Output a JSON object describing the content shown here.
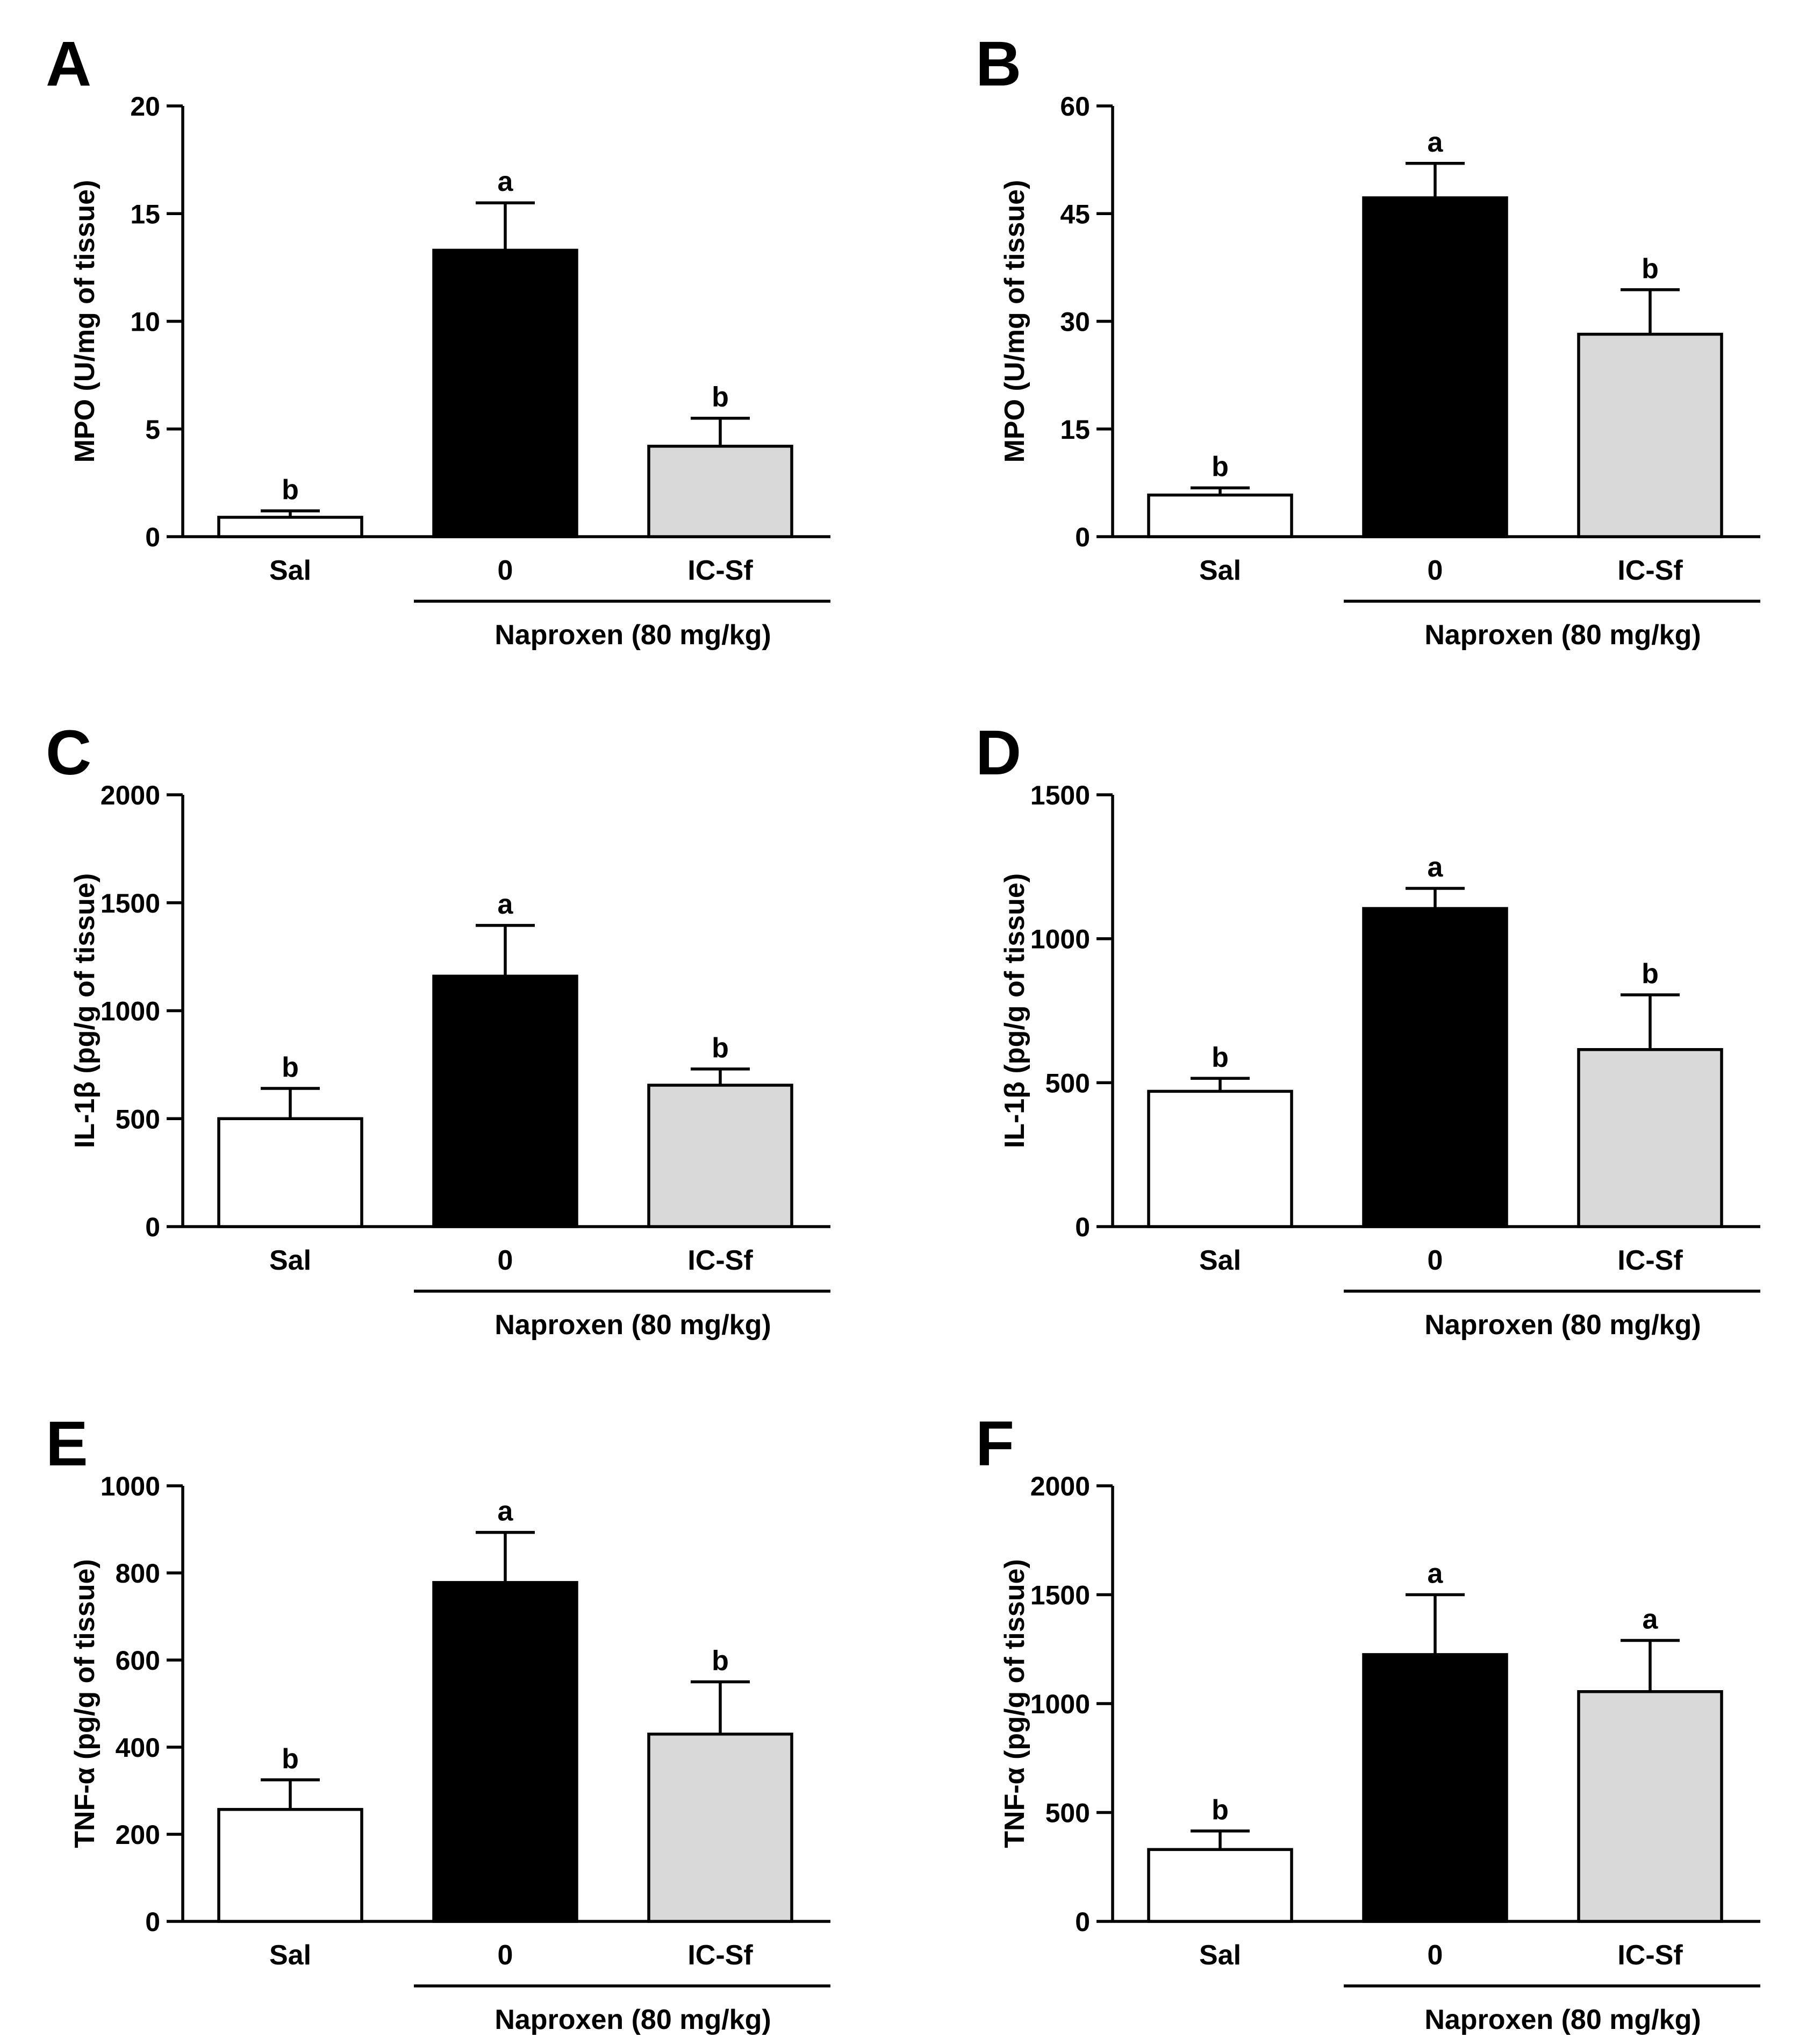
{
  "figure": {
    "panels": [
      "A",
      "B",
      "C",
      "D",
      "E",
      "F"
    ]
  },
  "colors": {
    "axis": "#000000",
    "sal_fill": "#ffffff",
    "zero_fill": "#000000",
    "icsf_fill": "#d9d9d9",
    "bar_stroke": "#000000"
  },
  "chart_data": [
    {
      "panel": "A",
      "type": "bar",
      "ylabel": "MPO (U/mg of tissue)",
      "ylim": [
        0,
        20
      ],
      "yticks": [
        "0",
        "5",
        "10",
        "15",
        "20"
      ],
      "categories": [
        "Sal",
        "0",
        "IC-Sf"
      ],
      "values": [
        0.9,
        13.3,
        4.2
      ],
      "errors": [
        0.3,
        2.2,
        1.3
      ],
      "sig_labels": [
        "b",
        "a",
        "b"
      ],
      "group_label": "Naproxen (80 mg/kg)"
    },
    {
      "panel": "B",
      "type": "bar",
      "ylabel": "MPO (U/mg of tissue)",
      "ylim": [
        0,
        60
      ],
      "yticks": [
        "0",
        "15",
        "30",
        "45",
        "60"
      ],
      "categories": [
        "Sal",
        "0",
        "IC-Sf"
      ],
      "values": [
        5.8,
        47.2,
        28.2
      ],
      "errors": [
        1.0,
        4.8,
        6.2
      ],
      "sig_labels": [
        "b",
        "a",
        "b"
      ],
      "group_label": "Naproxen (80 mg/kg)"
    },
    {
      "panel": "C",
      "type": "bar",
      "ylabel": "IL-1β (pg/g of tissue)",
      "ylim": [
        0,
        2000
      ],
      "yticks": [
        "0",
        "500",
        "1000",
        "1500",
        "2000"
      ],
      "categories": [
        "Sal",
        "0",
        "IC-Sf"
      ],
      "values": [
        500,
        1160,
        655
      ],
      "errors": [
        140,
        235,
        75
      ],
      "sig_labels": [
        "b",
        "a",
        "b"
      ],
      "group_label": "Naproxen (80 mg/kg)"
    },
    {
      "panel": "D",
      "type": "bar",
      "ylabel": "IL-1β (pg/g of tissue)",
      "ylim": [
        0,
        1500
      ],
      "yticks": [
        "0",
        "500",
        "1000",
        "1500"
      ],
      "categories": [
        "Sal",
        "0",
        "IC-Sf"
      ],
      "values": [
        470,
        1105,
        615
      ],
      "errors": [
        45,
        70,
        190
      ],
      "sig_labels": [
        "b",
        "a",
        "b"
      ],
      "group_label": "Naproxen (80 mg/kg)"
    },
    {
      "panel": "E",
      "type": "bar",
      "ylabel": "TNF-α (pg/g of tissue)",
      "ylim": [
        0,
        1000
      ],
      "yticks": [
        "0",
        "200",
        "400",
        "600",
        "800",
        "1000"
      ],
      "categories": [
        "Sal",
        "0",
        "IC-Sf"
      ],
      "values": [
        257,
        778,
        430
      ],
      "errors": [
        68,
        115,
        120
      ],
      "sig_labels": [
        "b",
        "a",
        "b"
      ],
      "group_label": "Naproxen (80 mg/kg)"
    },
    {
      "panel": "F",
      "type": "bar",
      "ylabel": "TNF-α (pg/g of tissue)",
      "ylim": [
        0,
        2000
      ],
      "yticks": [
        "0",
        "500",
        "1000",
        "1500",
        "2000"
      ],
      "categories": [
        "Sal",
        "0",
        "IC-Sf"
      ],
      "values": [
        330,
        1225,
        1055
      ],
      "errors": [
        85,
        275,
        235
      ],
      "sig_labels": [
        "b",
        "a",
        "a"
      ],
      "group_label": "Naproxen (80 mg/kg)"
    }
  ]
}
